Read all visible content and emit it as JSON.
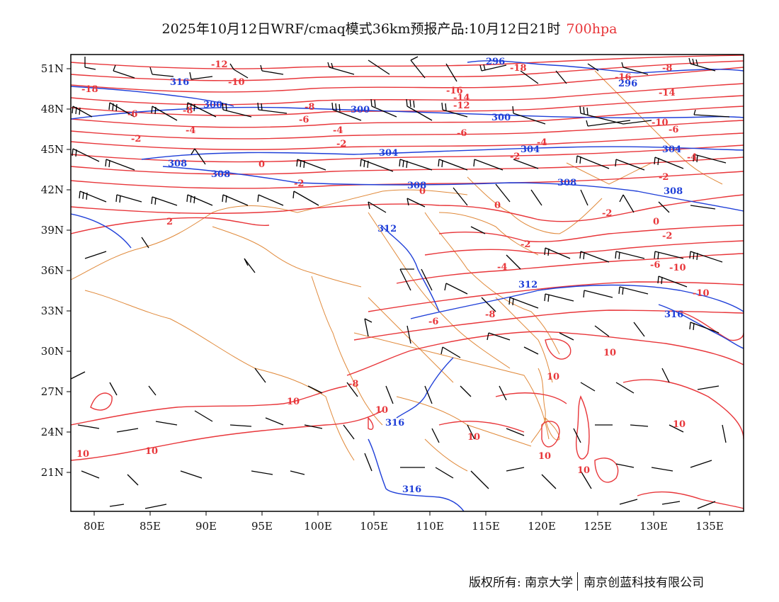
{
  "title": {
    "main": "2025年10月12日WRF/cmaq模式36km预报产品:10月12日21时",
    "level": "700hpa"
  },
  "colors": {
    "temperature": "#e8363a",
    "geopotential": "#1f3fd8",
    "boundary": "#e0893a",
    "wind": "#000000",
    "frame": "#000000"
  },
  "axes": {
    "lon_labels": [
      "80E",
      "85E",
      "90E",
      "95E",
      "100E",
      "105E",
      "110E",
      "115E",
      "120E",
      "125E",
      "130E",
      "135E"
    ],
    "lat_labels": [
      "51N",
      "48N",
      "45N",
      "42N",
      "39N",
      "36N",
      "33N",
      "30N",
      "27N",
      "24N",
      "21N"
    ]
  },
  "temperature_labels": [
    "-12",
    "-10",
    "-18",
    "-16",
    "-14",
    "-16",
    "-14",
    "-18",
    "-12",
    "-8",
    "-6",
    "-6",
    "-8",
    "-10",
    "-4",
    "-6",
    "-8",
    "-4",
    "-2",
    "-2",
    "-4",
    "-2",
    "0",
    "-2",
    "0",
    "-2",
    "0",
    "-2",
    "-6",
    "-2",
    "0",
    "-2",
    "-4",
    "2",
    "-4",
    "-6",
    "-8",
    "-10",
    "-8",
    "-6",
    "-10",
    "10",
    "10",
    "10",
    "10",
    "10",
    "10",
    "10",
    "10",
    "10",
    "10"
  ],
  "geopotential_labels": [
    "296",
    "296",
    "300",
    "300",
    "300",
    "304",
    "304",
    "304",
    "308",
    "308",
    "308",
    "308",
    "308",
    "312",
    "312",
    "316",
    "316",
    "316",
    "316"
  ],
  "footer": {
    "copyright": "版权所有: 南京大学",
    "company": "南京创蓝科技有限公司"
  }
}
